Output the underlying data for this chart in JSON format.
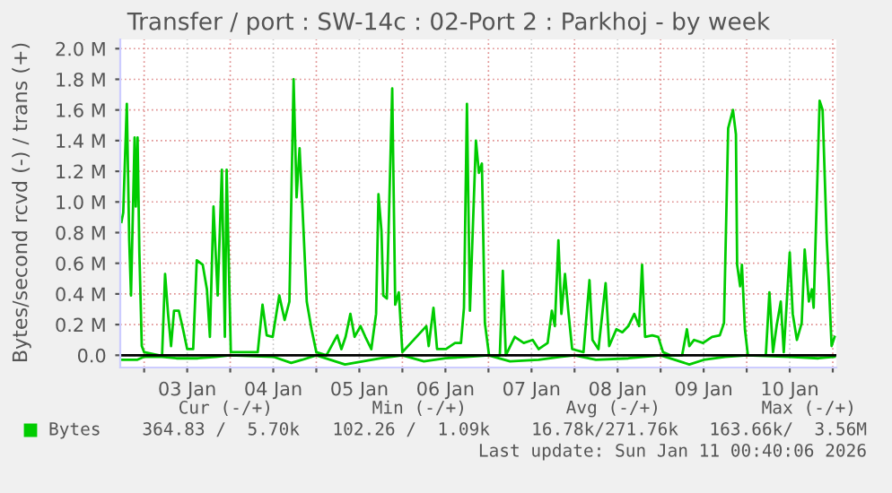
{
  "chart_data": {
    "type": "line",
    "title": "Transfer / port : SW-14c : 02-Port 2 : Parkhoj - by week",
    "ylabel": "Bytes/second rcvd (-) / trans (+)",
    "series": [
      {
        "name": "Bytes",
        "color": "#00cc00",
        "x": [
          "2026-01-02T17:40",
          "2026-01-02T18:10",
          "2026-01-02T19:10",
          "2026-01-02T19:50",
          "2026-01-02T20:20",
          "2026-01-02T21:20",
          "2026-01-02T21:40",
          "2026-01-02T22:10",
          "2026-01-02T22:40",
          "2026-01-02T23:20",
          "2026-01-03T00:00",
          "2026-01-03T04:10",
          "2026-01-03T05:00",
          "2026-01-03T05:50",
          "2026-01-03T06:40",
          "2026-01-03T07:30",
          "2026-01-03T08:20",
          "2026-01-03T09:40",
          "2026-01-03T10:50",
          "2026-01-03T12:00",
          "2026-01-03T13:40",
          "2026-01-03T14:40",
          "2026-01-03T16:20",
          "2026-01-03T17:30",
          "2026-01-03T18:20",
          "2026-01-03T19:20",
          "2026-01-03T20:30",
          "2026-01-03T21:40",
          "2026-01-03T22:30",
          "2026-01-03T23:00",
          "2026-01-04T00:10",
          "2026-01-04T07:40",
          "2026-01-04T09:00",
          "2026-01-04T10:10",
          "2026-01-04T11:50",
          "2026-01-04T13:40",
          "2026-01-04T15:10",
          "2026-01-04T16:30",
          "2026-01-04T17:40",
          "2026-01-04T18:30",
          "2026-01-04T19:20",
          "2026-01-04T20:10",
          "2026-01-04T21:20",
          "2026-01-04T22:40",
          "2026-01-05T00:00",
          "2026-01-05T02:50",
          "2026-01-05T05:50",
          "2026-01-05T07:00",
          "2026-01-05T08:10",
          "2026-01-05T09:30",
          "2026-01-05T10:40",
          "2026-01-05T12:20",
          "2026-01-05T13:40",
          "2026-01-05T15:20",
          "2026-01-05T16:40",
          "2026-01-05T17:20",
          "2026-01-05T18:10",
          "2026-01-05T18:40",
          "2026-01-05T19:40",
          "2026-01-05T21:10",
          "2026-01-05T22:00",
          "2026-01-05T23:00",
          "2026-01-06T00:00",
          "2026-01-06T06:40",
          "2026-01-06T07:20",
          "2026-01-06T08:40",
          "2026-01-06T09:40",
          "2026-01-06T12:10",
          "2026-01-06T14:40",
          "2026-01-06T16:20",
          "2026-01-06T17:10",
          "2026-01-06T18:00",
          "2026-01-06T18:50",
          "2026-01-06T20:30",
          "2026-01-06T21:20",
          "2026-01-06T22:10",
          "2026-01-06T23:00",
          "2026-01-07T00:10",
          "2026-01-07T03:10",
          "2026-01-07T04:00",
          "2026-01-07T04:50",
          "2026-01-07T07:20",
          "2026-01-07T09:50",
          "2026-01-07T12:20",
          "2026-01-07T14:00",
          "2026-01-07T16:30",
          "2026-01-07T17:40",
          "2026-01-07T18:30",
          "2026-01-07T19:30",
          "2026-01-07T20:20",
          "2026-01-07T21:20",
          "2026-01-07T22:20",
          "2026-01-07T23:20",
          "2026-01-08T02:30",
          "2026-01-08T04:10",
          "2026-01-08T05:00",
          "2026-01-08T06:40",
          "2026-01-08T08:40",
          "2026-01-08T09:40",
          "2026-01-08T11:40",
          "2026-01-08T13:20",
          "2026-01-08T15:00",
          "2026-01-08T16:40",
          "2026-01-08T18:00",
          "2026-01-08T18:50",
          "2026-01-08T19:40",
          "2026-01-08T21:40",
          "2026-01-08T23:20",
          "2026-01-09T00:40",
          "2026-01-09T02:40",
          "2026-01-09T06:00",
          "2026-01-09T07:20",
          "2026-01-09T08:00",
          "2026-01-09T09:20",
          "2026-01-09T11:50",
          "2026-01-09T14:20",
          "2026-01-09T16:30",
          "2026-01-09T17:40",
          "2026-01-09T18:50",
          "2026-01-09T20:10",
          "2026-01-09T21:00",
          "2026-01-09T21:20",
          "2026-01-09T22:10",
          "2026-01-09T22:40",
          "2026-01-09T23:30",
          "2026-01-10T00:20",
          "2026-01-10T05:20",
          "2026-01-10T06:20",
          "2026-01-10T07:20",
          "2026-01-10T08:20",
          "2026-01-10T09:30",
          "2026-01-10T10:20",
          "2026-01-10T12:00",
          "2026-01-10T12:50",
          "2026-01-10T14:00",
          "2026-01-10T15:20",
          "2026-01-10T16:10",
          "2026-01-10T17:20",
          "2026-01-10T18:10",
          "2026-01-10T18:40",
          "2026-01-10T20:20",
          "2026-01-10T21:10",
          "2026-01-10T22:20",
          "2026-01-10T22:50",
          "2026-01-10T23:40",
          "2026-01-11T00:30"
        ],
        "values": [
          870000,
          930000,
          1640000,
          750000,
          390000,
          1420000,
          970000,
          1420000,
          670000,
          60000,
          20000,
          0,
          0,
          530000,
          270000,
          60000,
          290000,
          290000,
          170000,
          40000,
          40000,
          620000,
          590000,
          430000,
          120000,
          970000,
          390000,
          1210000,
          120000,
          1210000,
          20000,
          20000,
          330000,
          130000,
          120000,
          390000,
          230000,
          350000,
          1800000,
          1030000,
          1350000,
          950000,
          350000,
          170000,
          20000,
          0,
          130000,
          40000,
          120000,
          270000,
          120000,
          190000,
          120000,
          40000,
          270000,
          1050000,
          810000,
          390000,
          370000,
          1740000,
          330000,
          410000,
          20000,
          190000,
          60000,
          310000,
          40000,
          40000,
          80000,
          80000,
          310000,
          1640000,
          290000,
          1400000,
          1190000,
          1250000,
          210000,
          0,
          0,
          550000,
          0,
          120000,
          80000,
          100000,
          40000,
          80000,
          290000,
          190000,
          750000,
          270000,
          530000,
          270000,
          40000,
          20000,
          490000,
          100000,
          40000,
          470000,
          60000,
          170000,
          150000,
          190000,
          270000,
          190000,
          590000,
          120000,
          130000,
          120000,
          20000,
          0,
          0,
          170000,
          60000,
          100000,
          80000,
          120000,
          130000,
          210000,
          1480000,
          1600000,
          1440000,
          590000,
          450000,
          590000,
          170000,
          0,
          0,
          410000,
          20000,
          190000,
          350000,
          20000,
          670000,
          270000,
          100000,
          210000,
          690000,
          350000,
          430000,
          310000,
          1660000,
          1600000,
          750000,
          510000,
          60000,
          120000
        ]
      },
      {
        "color": "#00cc00",
        "x": [
          "2026-01-02T17:40",
          "2026-01-02T22:00",
          "2026-01-03T00:00",
          "2026-01-03T05:00",
          "2026-01-03T09:00",
          "2026-01-03T15:00",
          "2026-01-03T20:00",
          "2026-01-04T00:00",
          "2026-01-04T12:00",
          "2026-01-04T17:00",
          "2026-01-04T20:00",
          "2026-01-05T00:00",
          "2026-01-05T08:00",
          "2026-01-05T13:00",
          "2026-01-05T18:00",
          "2026-01-06T00:00",
          "2026-01-06T06:00",
          "2026-01-06T12:00",
          "2026-01-06T18:00",
          "2026-01-07T00:00",
          "2026-01-07T06:00",
          "2026-01-07T14:00",
          "2026-01-07T20:00",
          "2026-01-08T00:00",
          "2026-01-08T06:00",
          "2026-01-08T15:00",
          "2026-01-09T00:00",
          "2026-01-09T08:00",
          "2026-01-09T12:00",
          "2026-01-09T18:00",
          "2026-01-10T00:00",
          "2026-01-10T12:00",
          "2026-01-10T20:00",
          "2026-01-11T00:30"
        ],
        "values": [
          -30000,
          -30000,
          -10000,
          -10000,
          -20000,
          -20000,
          -10000,
          0,
          -10000,
          -50000,
          -30000,
          0,
          -60000,
          -40000,
          -20000,
          0,
          -40000,
          -20000,
          -10000,
          0,
          -40000,
          -30000,
          -10000,
          0,
          -30000,
          -20000,
          0,
          -60000,
          -30000,
          -10000,
          0,
          -10000,
          -20000,
          -10000
        ]
      }
    ],
    "xlim": [
      "2026-01-02T17:20",
      "2026-01-11T01:00"
    ],
    "xticks": [
      {
        "value": "2026-01-03T00:00",
        "label": null
      },
      {
        "value": "2026-01-03T12:00",
        "label": "03 Jan"
      },
      {
        "value": "2026-01-04T00:00",
        "label": null
      },
      {
        "value": "2026-01-04T12:00",
        "label": "04 Jan"
      },
      {
        "value": "2026-01-05T00:00",
        "label": null
      },
      {
        "value": "2026-01-05T12:00",
        "label": "05 Jan"
      },
      {
        "value": "2026-01-06T00:00",
        "label": null
      },
      {
        "value": "2026-01-06T12:00",
        "label": "06 Jan"
      },
      {
        "value": "2026-01-07T00:00",
        "label": null
      },
      {
        "value": "2026-01-07T12:00",
        "label": "07 Jan"
      },
      {
        "value": "2026-01-08T00:00",
        "label": null
      },
      {
        "value": "2026-01-08T12:00",
        "label": "08 Jan"
      },
      {
        "value": "2026-01-09T00:00",
        "label": null
      },
      {
        "value": "2026-01-09T12:00",
        "label": "09 Jan"
      },
      {
        "value": "2026-01-10T00:00",
        "label": null
      },
      {
        "value": "2026-01-10T12:00",
        "label": "10 Jan"
      },
      {
        "value": "2026-01-11T00:00",
        "label": null
      }
    ],
    "ylim": [
      -80000,
      2060000
    ],
    "yticks": [
      {
        "value": 0,
        "label": "0.0"
      },
      {
        "value": 200000,
        "label": "0.2 M"
      },
      {
        "value": 400000,
        "label": "0.4 M"
      },
      {
        "value": 600000,
        "label": "0.6 M"
      },
      {
        "value": 800000,
        "label": "0.8 M"
      },
      {
        "value": 1000000,
        "label": "1.0 M"
      },
      {
        "value": 1200000,
        "label": "1.2 M"
      },
      {
        "value": 1400000,
        "label": "1.4 M"
      },
      {
        "value": 1600000,
        "label": "1.6 M"
      },
      {
        "value": 1800000,
        "label": "1.8 M"
      },
      {
        "value": 2000000,
        "label": "2.0 M"
      }
    ],
    "ref_lines": [
      {
        "axis": "y",
        "value": 0,
        "color": "#000000"
      }
    ],
    "grid": true,
    "legend": "bottom left",
    "annotations": [
      "Cur (-/+)",
      "Min (-/+)",
      "Avg (-/+)",
      "Max (-/+)",
      "364.83 /  5.70k",
      "102.26 /  1.09k",
      "16.78k/271.76k",
      "163.66k/  3.56M",
      "Last update: Sun Jan 11 00:40:06 2026"
    ]
  }
}
